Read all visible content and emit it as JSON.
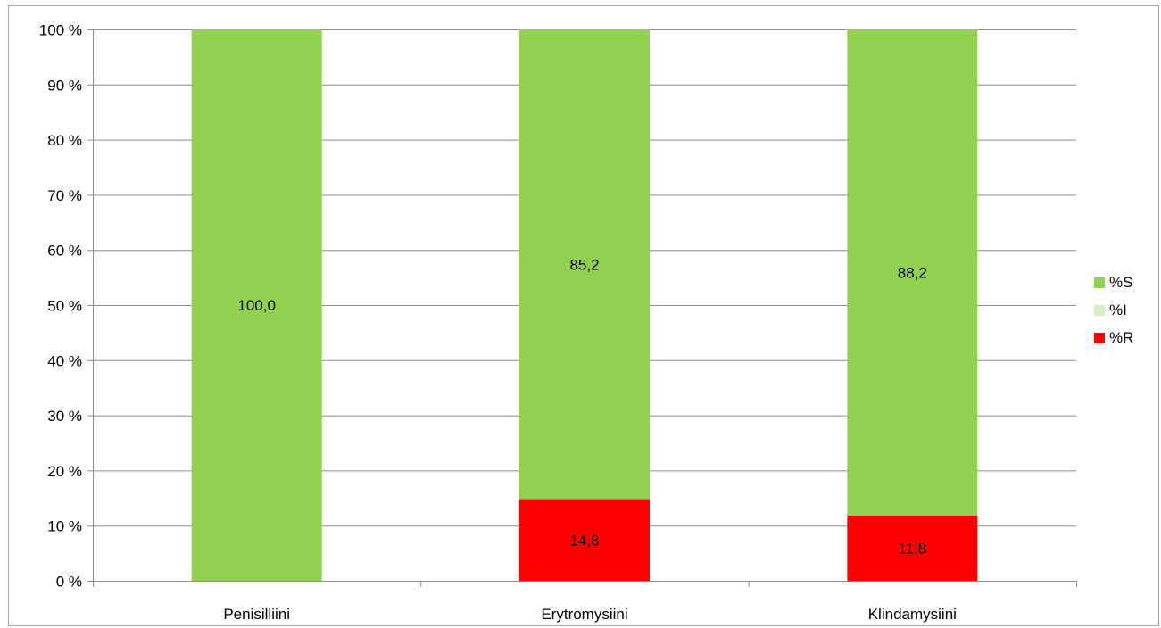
{
  "chart_data": {
    "type": "bar",
    "stacked": true,
    "categories": [
      "Penisilliini",
      "Erytromysiini",
      "Klindamysiini"
    ],
    "series": [
      {
        "name": "%R",
        "color": "#ff0000",
        "values": [
          0,
          14.8,
          11.8
        ],
        "labels": [
          "",
          "14,8",
          "11,8"
        ]
      },
      {
        "name": "%I",
        "color": "#d6eec0",
        "values": [
          0,
          0,
          0
        ],
        "labels": [
          "",
          "",
          ""
        ]
      },
      {
        "name": "%S",
        "color": "#92d050",
        "values": [
          100,
          85.2,
          88.2
        ],
        "labels": [
          "100,0",
          "85,2",
          "88,2"
        ]
      }
    ],
    "legend_order": [
      "%S",
      "%I",
      "%R"
    ],
    "ylim": [
      0,
      100
    ],
    "yticks": [
      0,
      10,
      20,
      30,
      40,
      50,
      60,
      70,
      80,
      90,
      100
    ],
    "ytick_labels": [
      "0 %",
      "10 %",
      "20 %",
      "30 %",
      "40 %",
      "50 %",
      "60 %",
      "70 %",
      "80 %",
      "90 %",
      "100 %"
    ],
    "grid": true,
    "legend_position": "right"
  }
}
